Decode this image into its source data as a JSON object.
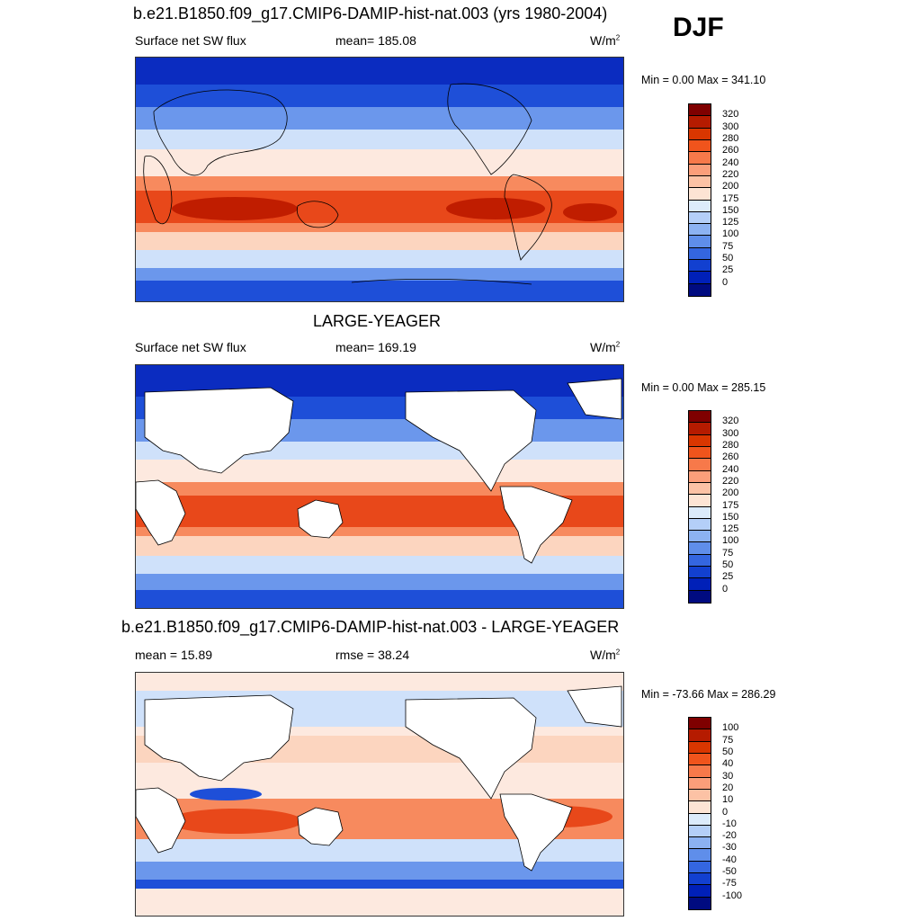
{
  "season": "DJF",
  "panels": [
    {
      "title": "b.e21.B1850.f09_g17.CMIP6-DAMIP-hist-nat.003 (yrs 1980-2004)",
      "left_label": "Surface net SW flux",
      "center_label": "mean= 185.08",
      "units": "W/m",
      "units_sup": "2",
      "minmax": "Min =   0.00 Max = 341.10",
      "ticks": [
        "320",
        "300",
        "280",
        "260",
        "240",
        "220",
        "200",
        "175",
        "150",
        "125",
        "100",
        "75",
        "50",
        "25",
        "0"
      ]
    },
    {
      "title": "LARGE-YEAGER",
      "left_label": "Surface net SW flux",
      "center_label": "mean= 169.19",
      "units": "W/m",
      "units_sup": "2",
      "minmax": "Min =   0.00 Max = 285.15",
      "ticks": [
        "320",
        "300",
        "280",
        "260",
        "240",
        "220",
        "200",
        "175",
        "150",
        "125",
        "100",
        "75",
        "50",
        "25",
        "0"
      ]
    },
    {
      "title": "b.e21.B1850.f09_g17.CMIP6-DAMIP-hist-nat.003 - LARGE-YEAGER",
      "left_label": "mean =  15.89",
      "center_label": "rmse =  38.24",
      "units": "W/m",
      "units_sup": "2",
      "minmax": "Min = -73.66 Max = 286.29",
      "ticks": [
        "100",
        "75",
        "50",
        "40",
        "30",
        "20",
        "10",
        "0",
        "-10",
        "-20",
        "-30",
        "-40",
        "-50",
        "-75",
        "-100"
      ]
    }
  ],
  "colorbar_colors": [
    "#7f0000",
    "#b51b00",
    "#d93600",
    "#f0541c",
    "#f7794a",
    "#fb9e7a",
    "#fcc2a5",
    "#fde4d4",
    "#dcebfb",
    "#b4cff8",
    "#8cb2f2",
    "#5f8eea",
    "#3466e0",
    "#1240d0",
    "#0020b8",
    "#000b80"
  ],
  "map_colors": {
    "high": "#c01d00",
    "mid_high": "#e8481a",
    "warm": "#f78a5e",
    "light_warm": "#fcd5bf",
    "neutral": "#fde9df",
    "light_cool": "#cfe1fa",
    "cool": "#6b97ec",
    "low": "#1e4fd8",
    "very_low": "#0b2cc0",
    "land": "#ffffff"
  }
}
